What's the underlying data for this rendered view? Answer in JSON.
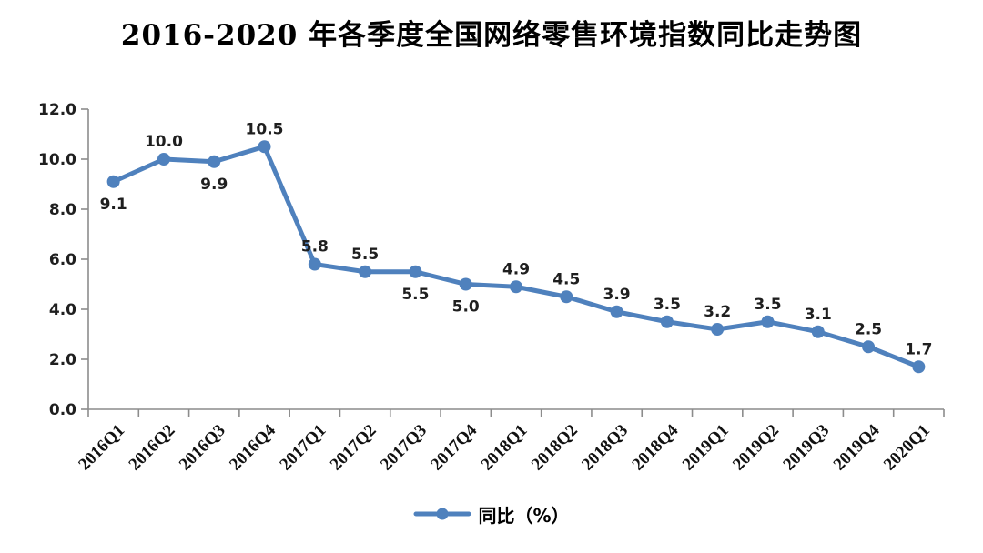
{
  "chart_data": {
    "type": "line",
    "title": "2016-2020 年各季度全国网络零售环境指数同比走势图",
    "categories": [
      "2016Q1",
      "2016Q2",
      "2016Q3",
      "2016Q4",
      "2017Q1",
      "2017Q2",
      "2017Q3",
      "2017Q4",
      "2018Q1",
      "2018Q2",
      "2018Q3",
      "2018Q4",
      "2019Q1",
      "2019Q2",
      "2019Q3",
      "2019Q4",
      "2020Q1"
    ],
    "series": [
      {
        "name": "同比（%）",
        "values": [
          9.1,
          10.0,
          9.9,
          10.5,
          5.8,
          5.5,
          5.5,
          5.0,
          4.9,
          4.5,
          3.9,
          3.5,
          3.2,
          3.5,
          3.1,
          2.5,
          1.7
        ]
      }
    ],
    "data_labels": [
      "9.1",
      "10.0",
      "9.9",
      "10.5",
      "5.8",
      "5.5",
      "5.5",
      "5.0",
      "4.9",
      "4.5",
      "3.9",
      "3.5",
      "3.2",
      "3.5",
      "3.1",
      "2.5",
      "1.7"
    ],
    "label_positions": [
      "below",
      "above",
      "below",
      "above",
      "above",
      "above",
      "below",
      "below",
      "above",
      "above",
      "above",
      "above",
      "above",
      "above",
      "above",
      "above",
      "above"
    ],
    "xlabel": "",
    "ylabel": "",
    "ylim": [
      0,
      12
    ],
    "ytick_labels": [
      "0.0",
      "2.0",
      "4.0",
      "6.0",
      "8.0",
      "10.0",
      "12.0"
    ],
    "grid": false,
    "x_label_rotation_deg": -45,
    "legend": {
      "label": "同比（%）",
      "position": "bottom-center"
    },
    "colors": {
      "line": "#4F81BD",
      "marker": "#4F81BD",
      "axis": "#8C8C8C",
      "text": "#1F1F1F",
      "background": "#FFFFFF"
    }
  }
}
